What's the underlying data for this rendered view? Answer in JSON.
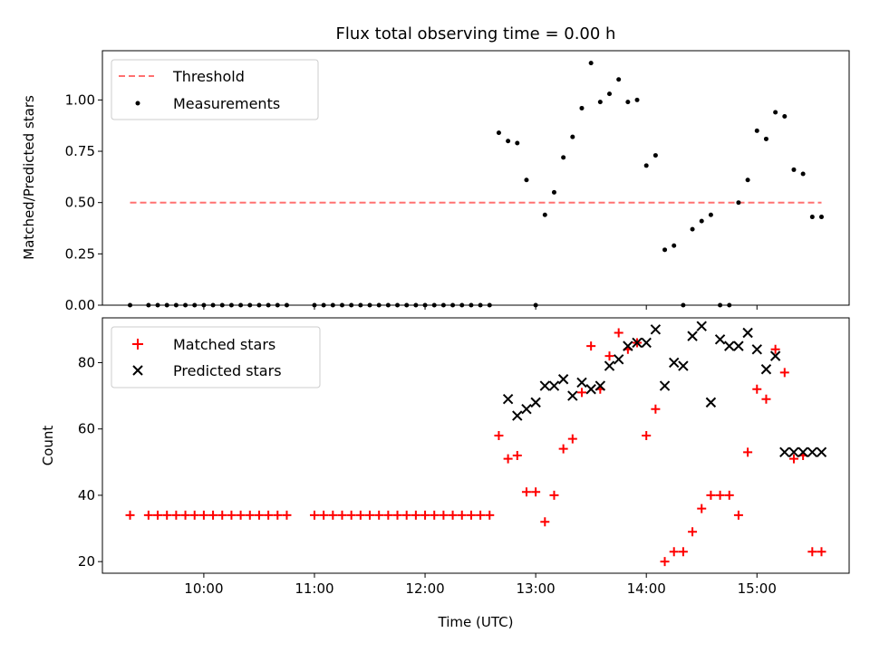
{
  "title": "Flux total observing time = 0.00 h",
  "chart_data": [
    {
      "type": "scatter",
      "ylabel": "Matched/Predicted stars",
      "ylim": [
        0,
        1.24
      ],
      "yticks": [
        "0.00",
        "0.25",
        "0.50",
        "0.75",
        "1.00"
      ],
      "ytick_values": [
        0,
        0.25,
        0.5,
        0.75,
        1.0
      ],
      "legend_position": "top-left",
      "series": [
        {
          "name": "Threshold",
          "style": "dashed-line",
          "color": "#ff7070",
          "x": [
            "09:20",
            "15:35"
          ],
          "values": [
            0.5,
            0.5
          ]
        },
        {
          "name": "Measurements",
          "style": "dots",
          "color": "#000000",
          "x": [
            "09:20",
            "09:30",
            "09:35",
            "09:40",
            "09:45",
            "09:50",
            "09:55",
            "10:00",
            "10:05",
            "10:10",
            "10:15",
            "10:20",
            "10:25",
            "10:30",
            "10:35",
            "10:40",
            "10:45",
            "11:00",
            "11:05",
            "11:10",
            "11:15",
            "11:20",
            "11:25",
            "11:30",
            "11:35",
            "11:40",
            "11:45",
            "11:50",
            "11:55",
            "12:00",
            "12:05",
            "12:10",
            "12:15",
            "12:20",
            "12:25",
            "12:30",
            "12:35",
            "12:40",
            "12:45",
            "12:50",
            "12:55",
            "13:00",
            "13:05",
            "13:10",
            "13:15",
            "13:20",
            "13:25",
            "13:30",
            "13:35",
            "13:40",
            "13:45",
            "13:50",
            "13:55",
            "14:00",
            "14:05",
            "14:10",
            "14:15",
            "14:20",
            "14:25",
            "14:30",
            "14:35",
            "14:40",
            "14:45",
            "14:50",
            "14:55",
            "15:00",
            "15:05",
            "15:10",
            "15:15",
            "15:20",
            "15:25",
            "15:30",
            "15:35"
          ],
          "values": [
            0,
            0,
            0,
            0,
            0,
            0,
            0,
            0,
            0,
            0,
            0,
            0,
            0,
            0,
            0,
            0,
            0,
            0,
            0,
            0,
            0,
            0,
            0,
            0,
            0,
            0,
            0,
            0,
            0,
            0,
            0,
            0,
            0,
            0,
            0,
            0,
            0,
            0.84,
            0.8,
            0.79,
            0.61,
            0.0,
            0.44,
            0.55,
            0.72,
            0.82,
            0.96,
            1.18,
            0.99,
            1.03,
            1.1,
            0.99,
            1.0,
            0.68,
            0.73,
            0.27,
            0.29,
            0.0,
            0.37,
            0.41,
            0.44,
            0.0,
            0.0,
            0.5,
            0.61,
            0.85,
            0.81,
            0.94,
            0.92,
            0.66,
            0.64,
            0.43,
            0.43
          ]
        }
      ]
    },
    {
      "type": "scatter",
      "xlabel": "Time (UTC)",
      "ylabel": "Count",
      "ylim": [
        16.5,
        93.5
      ],
      "yticks": [
        "20",
        "40",
        "60",
        "80"
      ],
      "ytick_values": [
        20,
        40,
        60,
        80
      ],
      "xticks": [
        "10:00",
        "11:00",
        "12:00",
        "13:00",
        "14:00",
        "15:00"
      ],
      "legend_position": "top-left",
      "series": [
        {
          "name": "Matched stars",
          "marker": "+",
          "color": "#ff0000",
          "x": [
            "09:20",
            "09:30",
            "09:35",
            "09:40",
            "09:45",
            "09:50",
            "09:55",
            "10:00",
            "10:05",
            "10:10",
            "10:15",
            "10:20",
            "10:25",
            "10:30",
            "10:35",
            "10:40",
            "10:45",
            "11:00",
            "11:05",
            "11:10",
            "11:15",
            "11:20",
            "11:25",
            "11:30",
            "11:35",
            "11:40",
            "11:45",
            "11:50",
            "11:55",
            "12:00",
            "12:05",
            "12:10",
            "12:15",
            "12:20",
            "12:25",
            "12:30",
            "12:35",
            "12:40",
            "12:45",
            "12:50",
            "12:55",
            "13:00",
            "13:05",
            "13:10",
            "13:15",
            "13:20",
            "13:25",
            "13:30",
            "13:35",
            "13:40",
            "13:45",
            "13:50",
            "13:55",
            "14:00",
            "14:05",
            "14:10",
            "14:15",
            "14:20",
            "14:25",
            "14:30",
            "14:35",
            "14:40",
            "14:45",
            "14:50",
            "14:55",
            "15:00",
            "15:05",
            "15:10",
            "15:15",
            "15:20",
            "15:25",
            "15:30",
            "15:35"
          ],
          "values": [
            34,
            34,
            34,
            34,
            34,
            34,
            34,
            34,
            34,
            34,
            34,
            34,
            34,
            34,
            34,
            34,
            34,
            34,
            34,
            34,
            34,
            34,
            34,
            34,
            34,
            34,
            34,
            34,
            34,
            34,
            34,
            34,
            34,
            34,
            34,
            34,
            34,
            58,
            51,
            52,
            41,
            41,
            32,
            40,
            54,
            57,
            71,
            85,
            72,
            82,
            89,
            84,
            86,
            58,
            66,
            20,
            23,
            23,
            29,
            36,
            40,
            40,
            40,
            34,
            53,
            72,
            69,
            84,
            77,
            51,
            52,
            23,
            23
          ]
        },
        {
          "name": "Predicted stars",
          "marker": "x",
          "color": "#000000",
          "x": [
            "12:45",
            "12:50",
            "12:55",
            "13:00",
            "13:05",
            "13:10",
            "13:15",
            "13:20",
            "13:25",
            "13:30",
            "13:35",
            "13:40",
            "13:45",
            "13:50",
            "13:55",
            "14:00",
            "14:05",
            "14:10",
            "14:15",
            "14:20",
            "14:25",
            "14:30",
            "14:35",
            "14:40",
            "14:45",
            "14:50",
            "14:55",
            "15:00",
            "15:05",
            "15:10",
            "15:15",
            "15:20",
            "15:25",
            "15:30",
            "15:35"
          ],
          "values": [
            69,
            64,
            66,
            68,
            73,
            73,
            75,
            70,
            74,
            72,
            73,
            79,
            81,
            85,
            86,
            86,
            90,
            73,
            80,
            79,
            88,
            91,
            68,
            87,
            85,
            85,
            89,
            84,
            78,
            82,
            53,
            53,
            53,
            53,
            53
          ]
        }
      ]
    }
  ]
}
